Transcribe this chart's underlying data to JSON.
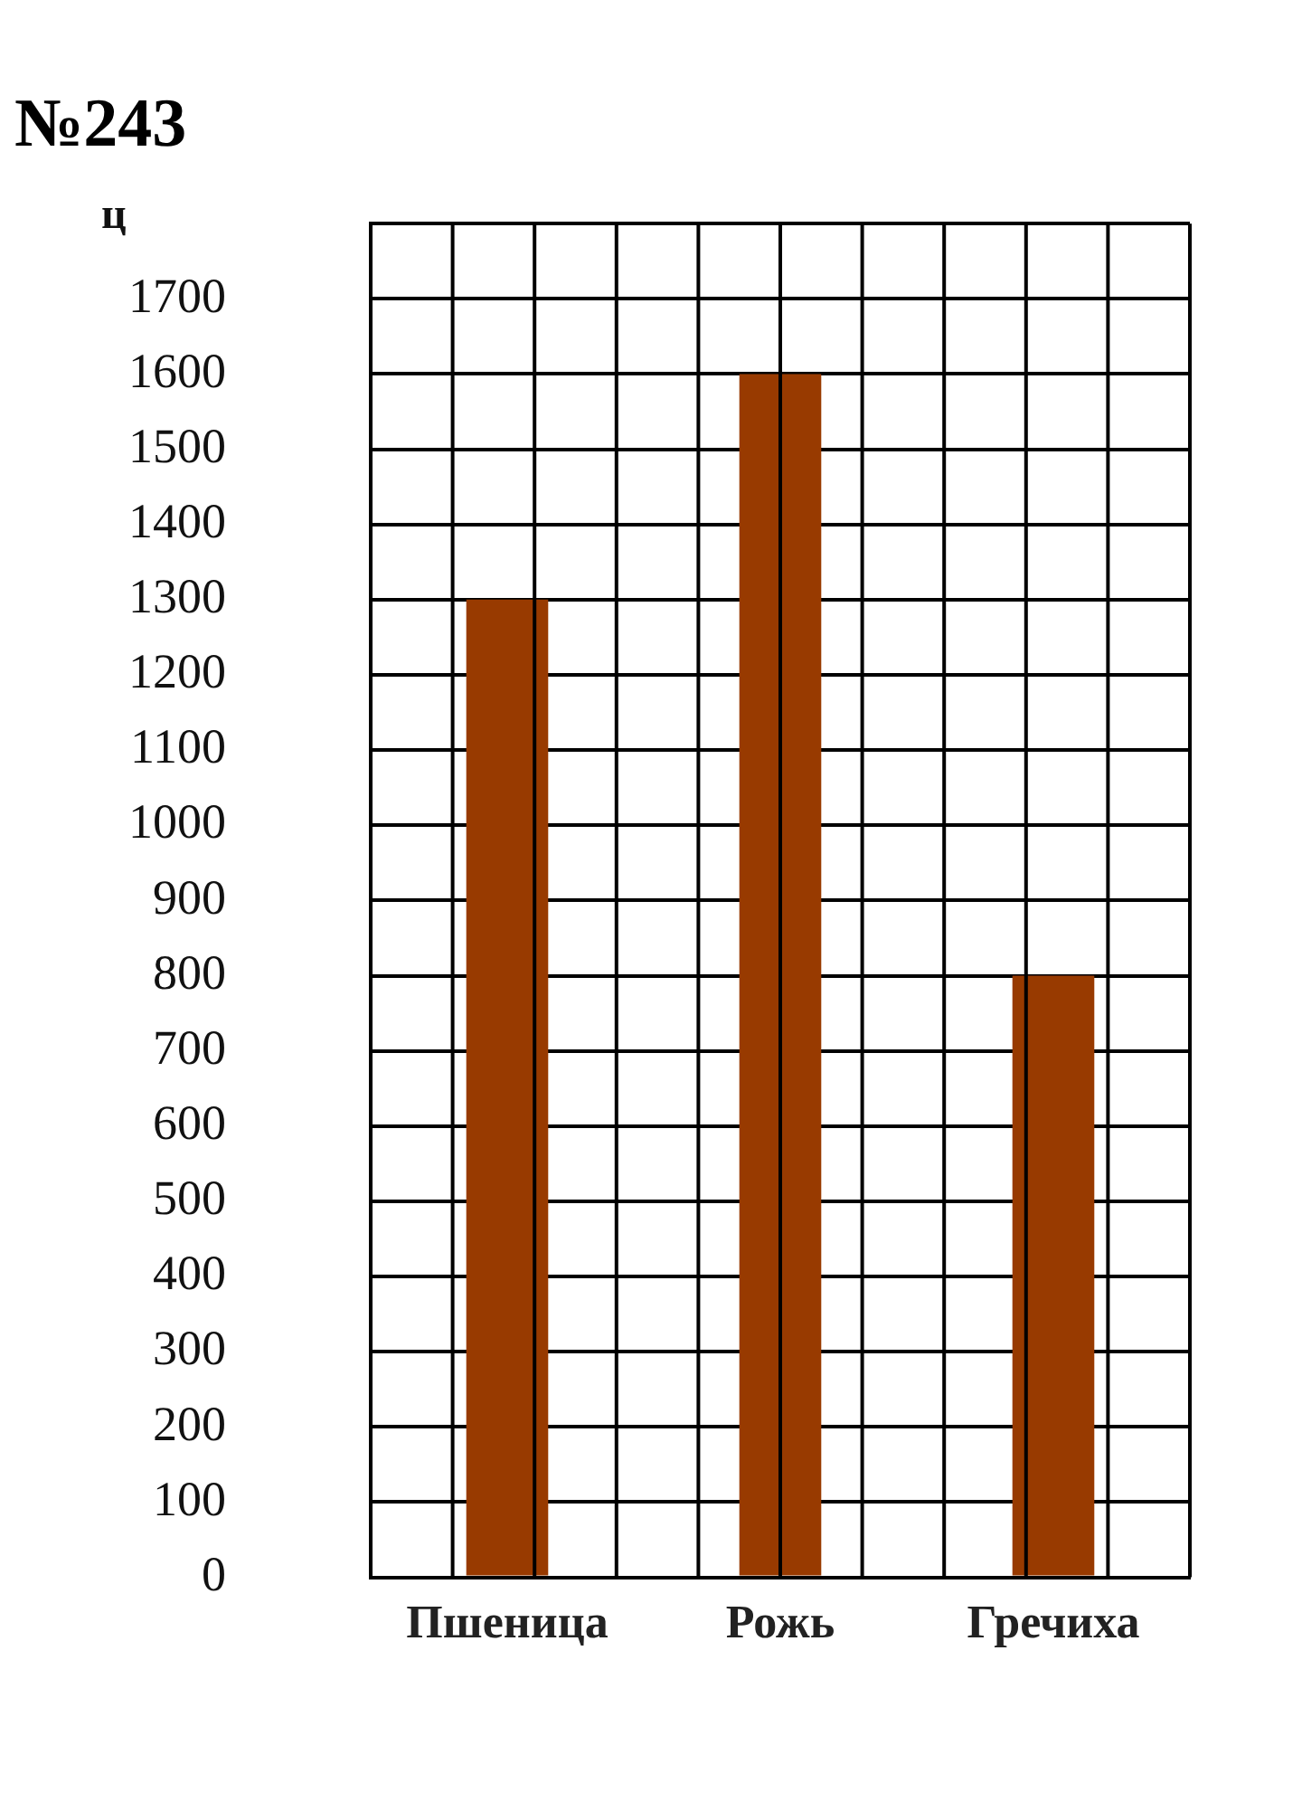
{
  "chart_data": {
    "type": "bar",
    "title": "№243",
    "ylabel": "ц",
    "categories": [
      "Пшеница",
      "Рожь",
      "Гречиха"
    ],
    "values": [
      1300,
      1600,
      800
    ],
    "color": "#983a00",
    "ylim": [
      0,
      1800
    ],
    "yticks": [
      0,
      100,
      200,
      300,
      400,
      500,
      600,
      700,
      800,
      900,
      1000,
      1100,
      1200,
      1300,
      1400,
      1500,
      1600,
      1700,
      {
        "value": 1800,
        "label": null
      }
    ],
    "grid": true,
    "legend": false
  }
}
